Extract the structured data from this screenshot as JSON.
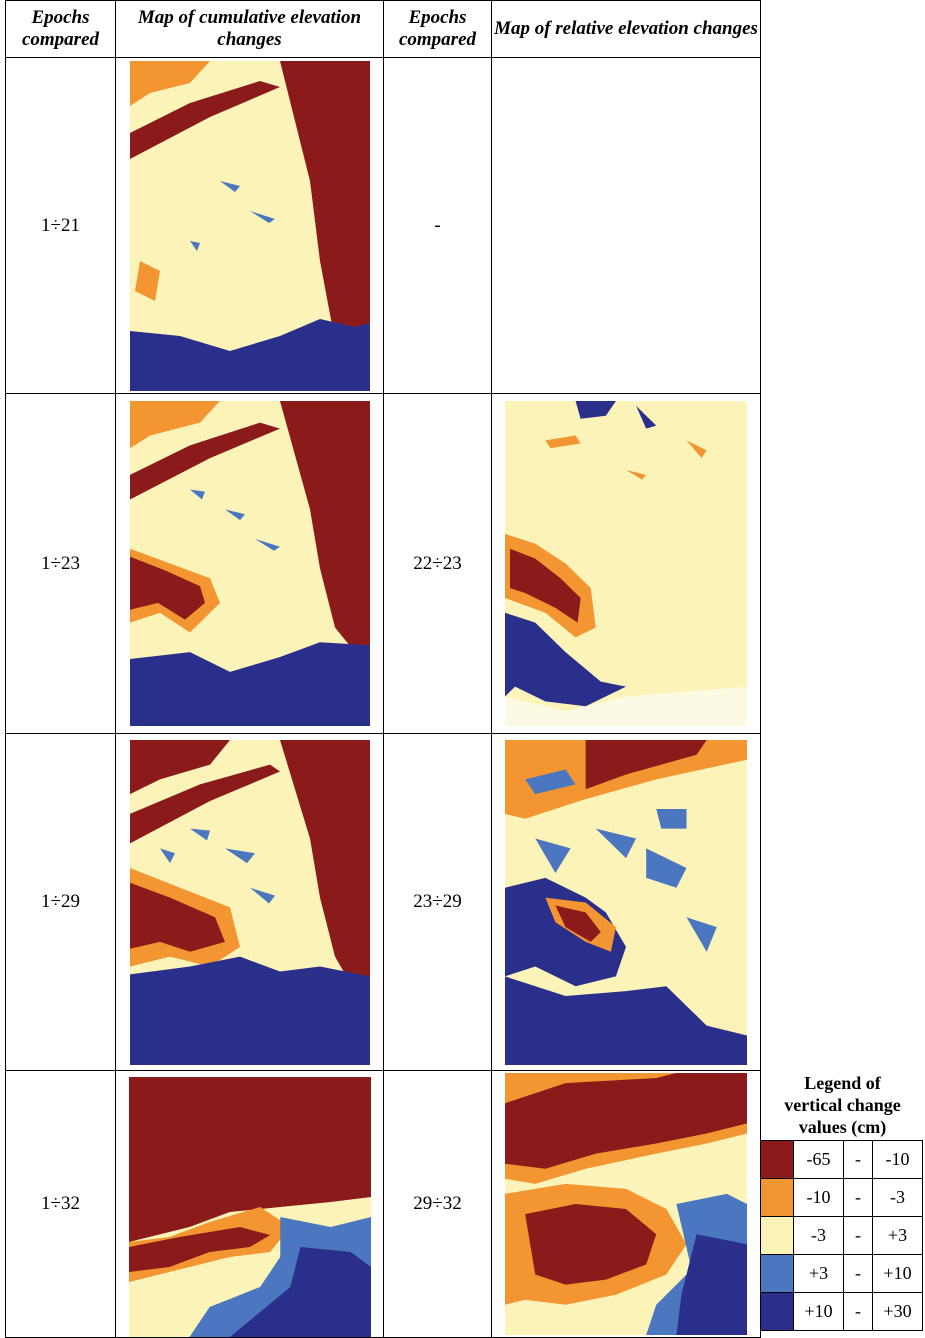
{
  "header": [
    "Epochs compared",
    "Map of cumulative elevation changes",
    "Epochs compared",
    "Map of relative elevation changes"
  ],
  "rows": [
    {
      "cumulative": "1÷21",
      "relative": "-"
    },
    {
      "cumulative": "1÷23",
      "relative": "22÷23"
    },
    {
      "cumulative": "1÷29",
      "relative": "23÷29"
    },
    {
      "cumulative": "1÷32",
      "relative": "29÷32"
    }
  ],
  "legend": {
    "title": [
      "Legend of",
      "vertical change",
      "values (cm)"
    ],
    "rows": [
      [
        "-65",
        "-",
        "-10"
      ],
      [
        "-10",
        "-",
        "-3"
      ],
      [
        "-3",
        "-",
        "+3"
      ],
      [
        "+3",
        "-",
        "+10"
      ],
      [
        "+10",
        "-",
        "+30"
      ]
    ]
  }
}
